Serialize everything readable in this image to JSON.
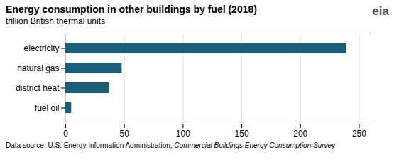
{
  "chart_data": {
    "type": "bar",
    "orientation": "horizontal",
    "title": "Energy consumption in other buildings by fuel (2018)",
    "subtitle": "trillion British thermal units",
    "categories": [
      "fuel oil",
      "district heat",
      "natural gas",
      "electricity"
    ],
    "values": [
      5,
      37,
      48,
      239
    ],
    "color": "#1B5E78",
    "xlim": [
      0,
      260
    ],
    "xticks": [
      0,
      50,
      100,
      150,
      200,
      250
    ],
    "grid": true,
    "footnote": "Data source: U.S. Energy Information Administration,",
    "footnote_italic": "Commercial Buildings Energy Consumption Survey",
    "annotations": [
      "eia"
    ]
  }
}
